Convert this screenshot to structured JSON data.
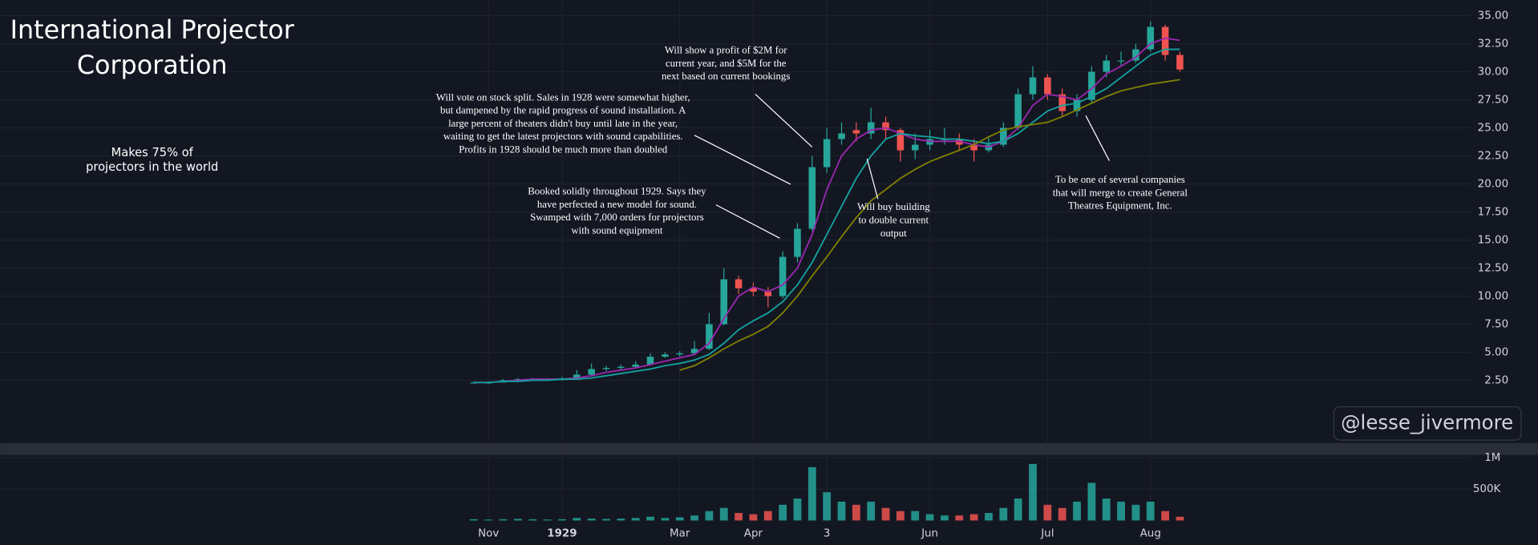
{
  "chart_data": {
    "type": "candlestick",
    "title": [
      "International Projector",
      "Corporation"
    ],
    "categories": [
      null,
      "Nov",
      null,
      null,
      null,
      null,
      "1929",
      null,
      null,
      null,
      null,
      null,
      null,
      null,
      "Mar",
      null,
      null,
      null,
      null,
      "Apr",
      null,
      null,
      null,
      null,
      "3",
      null,
      null,
      null,
      null,
      null,
      null,
      "Jun",
      null,
      null,
      null,
      null,
      null,
      null,
      null,
      "Jul",
      null,
      null,
      null,
      null,
      null,
      null,
      "Aug",
      null,
      null
    ],
    "open": [
      2.3,
      2.3,
      2.3,
      2.5,
      2.6,
      2.6,
      2.6,
      2.6,
      3.0,
      3.5,
      3.6,
      3.7,
      3.9,
      4.6,
      4.8,
      4.9,
      5.3,
      7.5,
      11.5,
      10.7,
      10.4,
      10.0,
      13.5,
      16.0,
      21.5,
      24.0,
      24.8,
      24.5,
      25.5,
      24.8,
      23.0,
      23.5,
      24.0,
      24.0,
      23.5,
      23.0,
      23.5,
      25.0,
      28.0,
      29.5,
      28.0,
      26.5,
      27.5,
      30.0,
      31.0,
      31.0,
      32.0,
      34.0,
      31.5
    ],
    "high": [
      2.4,
      2.4,
      2.6,
      2.7,
      2.7,
      2.7,
      2.8,
      3.4,
      4.0,
      3.8,
      3.9,
      4.2,
      4.9,
      5.0,
      5.1,
      6.0,
      8.5,
      12.5,
      11.8,
      11.2,
      10.8,
      14.0,
      16.5,
      22.5,
      25.0,
      25.5,
      25.5,
      26.8,
      26.0,
      25.0,
      24.5,
      24.8,
      25.0,
      24.5,
      24.0,
      24.2,
      25.5,
      28.5,
      30.5,
      29.8,
      28.5,
      28.0,
      30.5,
      31.5,
      31.8,
      32.5,
      34.5,
      34.2,
      31.8
    ],
    "low": [
      2.2,
      2.2,
      2.3,
      2.4,
      2.5,
      2.5,
      2.5,
      2.6,
      2.9,
      3.3,
      3.4,
      3.6,
      3.8,
      4.5,
      4.6,
      4.8,
      5.2,
      7.4,
      10.2,
      10.0,
      9.0,
      9.8,
      13.0,
      15.8,
      21.0,
      23.5,
      23.8,
      24.0,
      24.0,
      22.0,
      22.2,
      23.0,
      23.5,
      23.0,
      22.0,
      22.8,
      23.3,
      24.8,
      27.5,
      27.5,
      26.0,
      26.0,
      27.2,
      29.5,
      30.5,
      30.8,
      31.8,
      31.0,
      30.0
    ],
    "close": [
      2.3,
      2.3,
      2.5,
      2.6,
      2.6,
      2.6,
      2.6,
      3.0,
      3.5,
      3.6,
      3.7,
      3.9,
      4.6,
      4.8,
      4.9,
      5.3,
      7.5,
      11.5,
      10.7,
      10.4,
      10.0,
      13.5,
      16.0,
      21.5,
      24.0,
      24.5,
      24.5,
      25.5,
      24.8,
      23.0,
      23.5,
      24.0,
      24.0,
      23.5,
      23.0,
      23.5,
      25.0,
      28.0,
      29.5,
      28.0,
      26.5,
      27.5,
      30.0,
      31.0,
      31.0,
      32.0,
      34.0,
      31.5,
      30.2
    ],
    "up_color": "#26a69a",
    "down_color": "#ef5350",
    "series": [
      {
        "color": "#9c27b0",
        "values": [
          2.3,
          2.3,
          2.4,
          2.5,
          2.6,
          2.6,
          2.6,
          2.7,
          2.9,
          3.2,
          3.4,
          3.6,
          3.9,
          4.2,
          4.5,
          4.8,
          5.8,
          8.0,
          10.0,
          10.8,
          10.4,
          11.0,
          12.5,
          15.5,
          19.5,
          22.5,
          24.0,
          24.8,
          25.0,
          24.5,
          24.0,
          23.8,
          23.8,
          23.8,
          23.5,
          23.3,
          23.8,
          25.0,
          27.0,
          28.0,
          27.8,
          27.5,
          28.5,
          29.8,
          30.5,
          31.3,
          32.5,
          33.0,
          32.8
        ]
      },
      {
        "color": "#14a3a0",
        "values": [
          2.3,
          2.3,
          2.4,
          2.4,
          2.5,
          2.5,
          2.6,
          2.6,
          2.7,
          2.9,
          3.1,
          3.3,
          3.5,
          3.8,
          4.0,
          4.3,
          4.8,
          5.8,
          7.0,
          7.8,
          8.5,
          9.5,
          11.0,
          13.0,
          15.5,
          18.0,
          20.5,
          22.5,
          24.0,
          24.5,
          24.3,
          24.2,
          24.0,
          24.0,
          23.8,
          23.6,
          23.8,
          24.5,
          25.5,
          26.5,
          27.0,
          27.2,
          27.8,
          28.5,
          29.5,
          30.5,
          31.5,
          32.0,
          32.0
        ]
      },
      {
        "color": "#808000",
        "values": [
          null,
          null,
          null,
          null,
          null,
          null,
          null,
          null,
          null,
          null,
          null,
          null,
          null,
          null,
          3.4,
          3.8,
          4.5,
          5.3,
          6.0,
          6.6,
          7.3,
          8.5,
          10.0,
          11.8,
          13.5,
          15.3,
          17.0,
          18.5,
          19.5,
          20.5,
          21.3,
          22.0,
          22.5,
          23.0,
          23.5,
          24.2,
          24.8,
          25.1,
          25.3,
          25.5,
          26.0,
          26.6,
          27.2,
          27.8,
          28.3,
          28.6,
          28.9,
          29.1,
          29.3
        ]
      }
    ],
    "ylim": [
      -3.1,
      36.4
    ],
    "yticks": [
      {
        "value": 2.5,
        "label": "2.50"
      },
      {
        "value": 5,
        "label": "5.00"
      },
      {
        "value": 7.5,
        "label": "7.50"
      },
      {
        "value": 10,
        "label": "10.00"
      },
      {
        "value": 12.5,
        "label": "12.50"
      },
      {
        "value": 15,
        "label": "15.00"
      },
      {
        "value": 17.5,
        "label": "17.50"
      },
      {
        "value": 20,
        "label": "20.00"
      },
      {
        "value": 22.5,
        "label": "22.50"
      },
      {
        "value": 25,
        "label": "25.00"
      },
      {
        "value": 27.5,
        "label": "27.50"
      },
      {
        "value": 30,
        "label": "30.00"
      },
      {
        "value": 32.5,
        "label": "32.50"
      },
      {
        "value": 35,
        "label": "35.00"
      }
    ],
    "grid": true,
    "volume": {
      "values": [
        20000,
        15000,
        20000,
        25000,
        20000,
        15000,
        20000,
        40000,
        30000,
        25000,
        30000,
        40000,
        60000,
        40000,
        50000,
        80000,
        150000,
        200000,
        120000,
        100000,
        150000,
        250000,
        350000,
        850000,
        450000,
        300000,
        250000,
        300000,
        200000,
        150000,
        150000,
        100000,
        80000,
        80000,
        100000,
        120000,
        200000,
        350000,
        900000,
        250000,
        200000,
        300000,
        600000,
        350000,
        300000,
        250000,
        300000,
        150000,
        60000
      ],
      "ylim": [
        0,
        1030000
      ],
      "yticks": [
        {
          "value": 500000,
          "label": "500K"
        },
        {
          "value": 1000000,
          "label": "1M"
        }
      ]
    },
    "side_note": [
      "Makes 75% of",
      "projectors in the world"
    ],
    "annotations": [
      [
        "Will show a profit of $2M for",
        "current year, and $5M for the",
        "next based on current bookings"
      ],
      [
        "Will vote on stock split.  Sales in 1928 were somewhat higher,",
        "but dampened by the rapid progress of sound installation. A",
        "large percent of theaters didn't buy until late in the year,",
        "waiting to get the latest projectors with sound capabilities.",
        "Profits in 1928 should be much more than doubled"
      ],
      [
        "Booked solidly throughout 1929. Says they",
        "have perfected a new model for sound.",
        "Swamped with 7,000 orders for projectors",
        "with sound equipment"
      ],
      [
        "Will buy building",
        "to double current",
        "output"
      ],
      [
        "To be one of several companies",
        "that will merge to create General",
        "Theatres Equipment, Inc."
      ]
    ],
    "watermark": "@lesse_jivermore"
  }
}
